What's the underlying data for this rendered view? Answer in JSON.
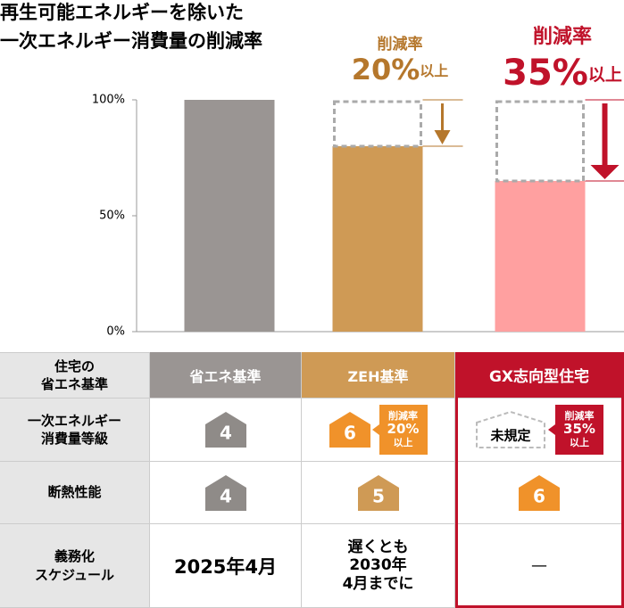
{
  "chart_data": {
    "type": "bar",
    "title": [
      "再生可能エネルギーを除いた",
      "一次エネルギー消費量の削減率"
    ],
    "categories": [
      null,
      null,
      null
    ],
    "values": [
      100,
      80,
      65
    ],
    "colors": [
      "#9a9593",
      "#cf9a55",
      "#ffa0a0"
    ],
    "ylim": [
      0,
      100
    ],
    "yticks": [
      {
        "value": 0,
        "label": "0%"
      },
      {
        "value": 50,
        "label": "50%"
      },
      {
        "value": 100,
        "label": "100%"
      }
    ],
    "annotations": [
      {
        "title": "削減率",
        "label": "20%",
        "suffix": "以上",
        "color": "#b5772c"
      },
      {
        "title": "削減率",
        "label": "35%",
        "suffix": "以上",
        "color": "#c0122a"
      }
    ]
  },
  "table": {
    "header": [
      "住宅の\n省エネ基準",
      "省エネ基準",
      "ZEH基準",
      "GX志向型住宅"
    ],
    "rows": [
      [
        "一次エネルギー\n消費量等級",
        "4",
        "6",
        "未規定"
      ],
      [
        "断熱性能",
        "4",
        "5",
        "6"
      ],
      [
        "義務化\nスケジュール",
        "2025年4月",
        "遅くとも\n2030年\n4月までに",
        "—"
      ]
    ],
    "badges": [
      {
        "title": "削減率",
        "value": "20%",
        "suffix": "以上"
      },
      {
        "title": "削減率",
        "value": "35%",
        "suffix": "以上"
      }
    ]
  }
}
